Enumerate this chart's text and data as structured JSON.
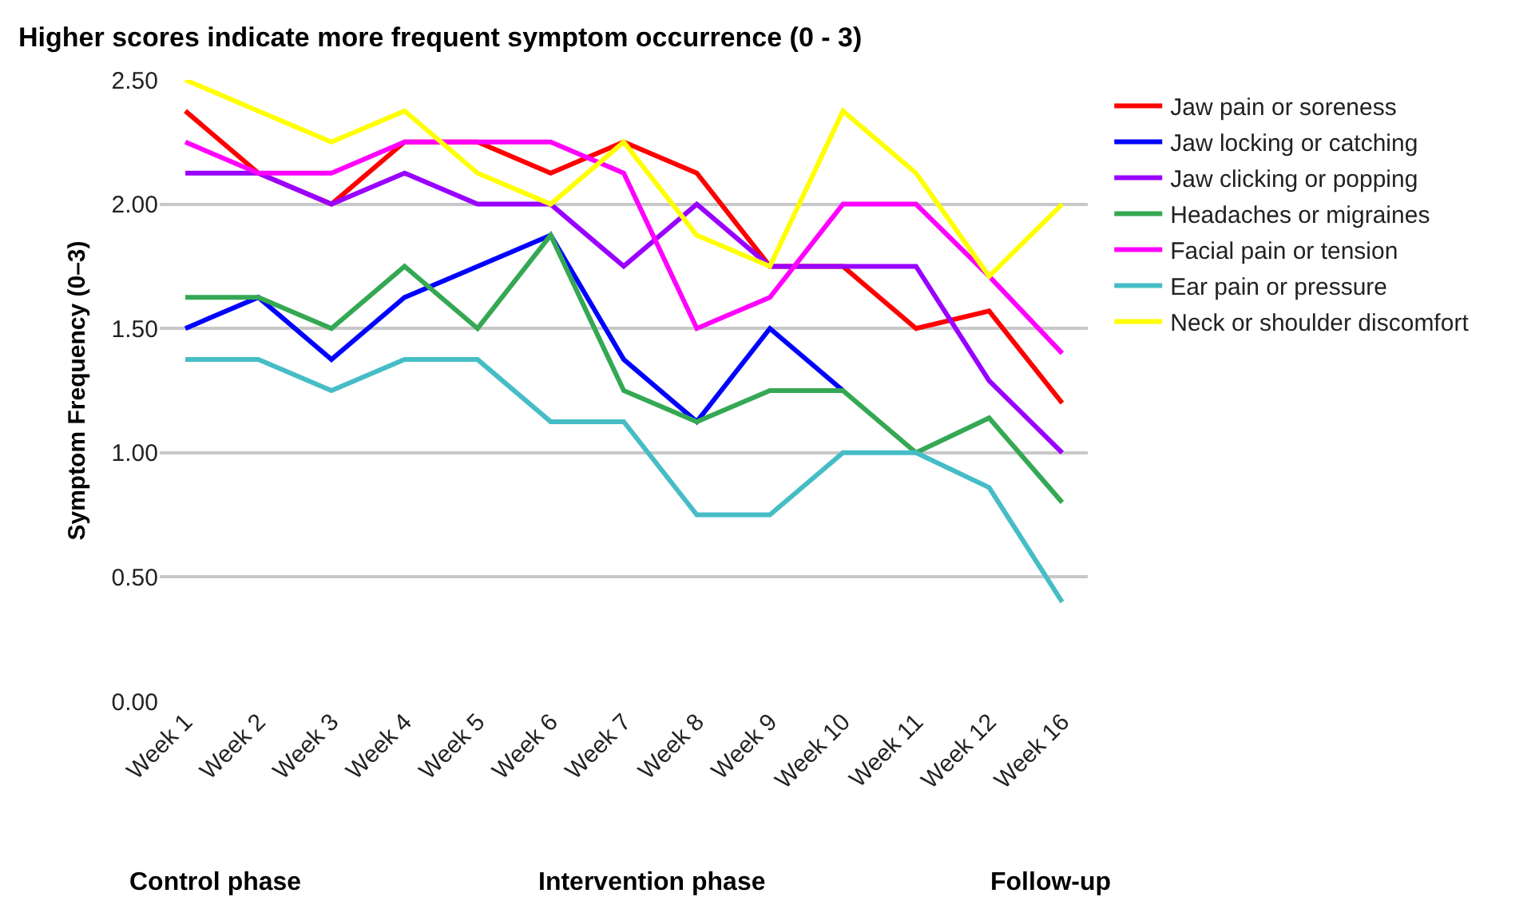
{
  "chart_data": {
    "type": "line",
    "title": "Higher scores indicate more frequent symptom occurrence (0 - 3)",
    "ylabel": "Symptom Frequency (0–3)",
    "categories": [
      "Week 1",
      "Week 2",
      "Week 3",
      "Week 4",
      "Week 5",
      "Week 6",
      "Week 7",
      "Week 8",
      "Week 9",
      "Week 10",
      "Week 11",
      "Week 12",
      "Week 16"
    ],
    "series": [
      {
        "name": "Jaw pain or soreness",
        "color": "#ff0000",
        "values": [
          2.375,
          2.125,
          2.0,
          2.25,
          2.25,
          2.125,
          2.25,
          2.125,
          1.75,
          1.75,
          1.5,
          1.57,
          1.2
        ]
      },
      {
        "name": "Jaw locking or catching",
        "color": "#0000ff",
        "values": [
          1.5,
          1.625,
          1.375,
          1.625,
          1.75,
          1.875,
          1.375,
          1.125,
          1.5,
          1.25,
          null,
          null,
          null
        ]
      },
      {
        "name": "Jaw clicking or popping",
        "color": "#9900ff",
        "values": [
          2.125,
          2.125,
          2.0,
          2.125,
          2.0,
          2.0,
          1.75,
          2.0,
          1.75,
          1.75,
          1.75,
          1.29,
          1.0
        ]
      },
      {
        "name": "Headaches or migraines",
        "color": "#34a853",
        "values": [
          1.625,
          1.625,
          1.5,
          1.75,
          1.5,
          1.875,
          1.25,
          1.125,
          1.25,
          1.25,
          1.0,
          1.14,
          0.8
        ]
      },
      {
        "name": "Facial pain or tension",
        "color": "#ff00ff",
        "values": [
          2.25,
          2.125,
          2.125,
          2.25,
          2.25,
          2.25,
          2.125,
          1.5,
          1.625,
          2.0,
          2.0,
          1.71,
          1.4
        ]
      },
      {
        "name": "Ear pain or pressure",
        "color": "#46bdc6",
        "values": [
          1.375,
          1.375,
          1.25,
          1.375,
          1.375,
          1.125,
          1.125,
          0.75,
          0.75,
          1.0,
          1.0,
          0.86,
          0.4
        ]
      },
      {
        "name": "Neck or shoulder discomfort",
        "color": "#ffff00",
        "values": [
          2.5,
          2.375,
          2.25,
          2.375,
          2.125,
          2.0,
          2.25,
          1.875,
          1.75,
          2.375,
          2.125,
          1.71,
          2.0
        ]
      }
    ],
    "ylim": [
      0,
      2.5
    ],
    "yticks": [
      {
        "value": 0,
        "label": "0.00"
      },
      {
        "value": 0.5,
        "label": "0.50"
      },
      {
        "value": 1,
        "label": "1.00"
      },
      {
        "value": 1.5,
        "label": "1.50"
      },
      {
        "value": 2,
        "label": "2.00"
      },
      {
        "value": 2.5,
        "label": "2.50"
      }
    ],
    "grid": "y",
    "legend": "right",
    "marker": "none",
    "line_style": "solid",
    "annotations": [
      "Control phase",
      "Intervention phase",
      "Follow-up"
    ]
  }
}
